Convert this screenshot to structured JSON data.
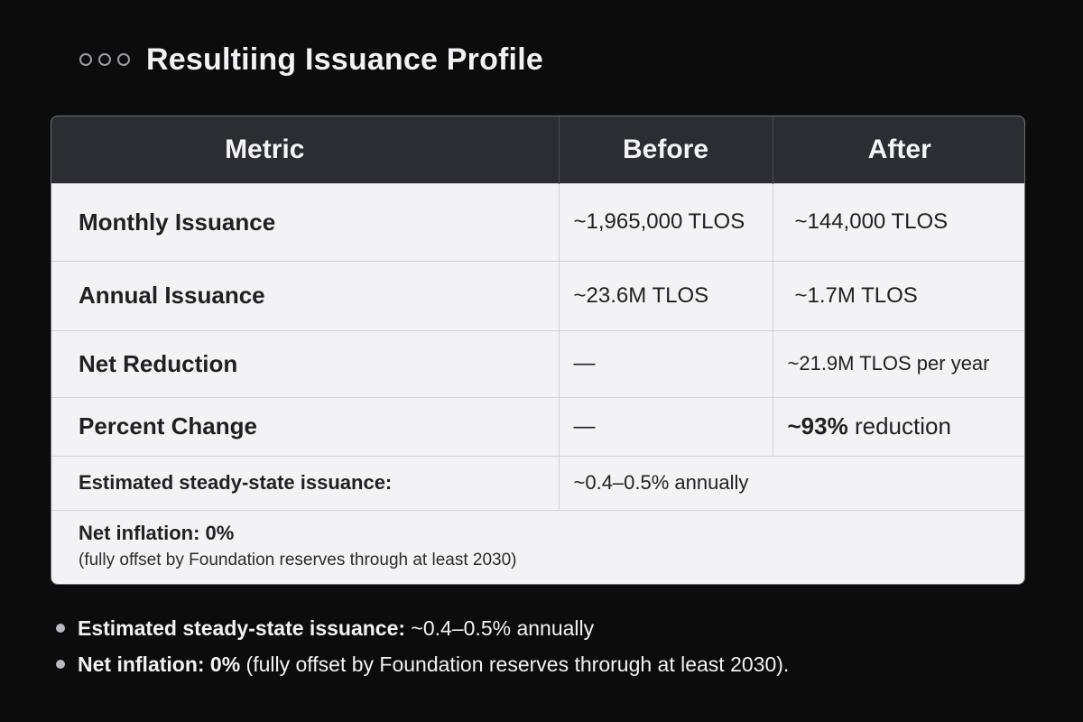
{
  "header": {
    "title": "Resultiing Issuance Profile"
  },
  "table": {
    "headers": [
      "Metric",
      "Before",
      "After"
    ],
    "rows": [
      {
        "metric": "Monthly Issuance",
        "before": "~1,965,000 TLOS",
        "after": "~144,000 TLOS"
      },
      {
        "metric": "Annual Issuance",
        "before": "~23.6M TLOS",
        "after": "~1.7M TLOS"
      },
      {
        "metric": "Net Reduction",
        "before": "—",
        "after": "~21.9M TLOS per year"
      },
      {
        "metric": "Percent Change",
        "before": "—",
        "after_bold": "~93%",
        "after_rest": " reduction"
      }
    ],
    "steady_state": {
      "label": "Estimated steady-state issuance:",
      "value": "~0.4–0.5% annually"
    },
    "net_inflation": {
      "label": "Net inflation: 0%",
      "note": "(fully offset by Foundation reserves through at least 2030)"
    }
  },
  "bullets": [
    {
      "bold": "Estimated steady-state issuance:",
      "text": " ~0.4–0.5% annually"
    },
    {
      "bold": "Net inflation: 0%",
      "text": " (fully offset by Foundation reserves throrugh at least 2030)."
    }
  ]
}
